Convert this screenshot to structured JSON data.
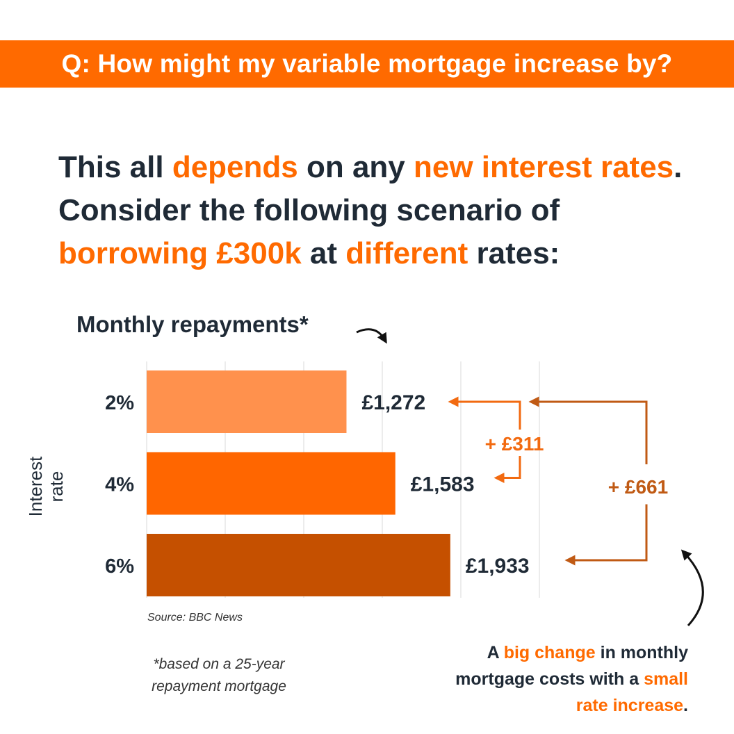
{
  "banner": {
    "title": "Q: How might my variable mortgage increase by?"
  },
  "headline": {
    "parts": [
      {
        "text": "This all ",
        "highlight": false
      },
      {
        "text": "depends",
        "highlight": true
      },
      {
        "text": " on any ",
        "highlight": false
      },
      {
        "text": "new interest rates",
        "highlight": true
      },
      {
        "text": ". Consider the following scenario of ",
        "highlight": false
      },
      {
        "text": "borrowing £300k",
        "highlight": true
      },
      {
        "text": " at ",
        "highlight": false
      },
      {
        "text": "different",
        "highlight": true
      },
      {
        "text": " rates:",
        "highlight": false
      }
    ]
  },
  "colors": {
    "accent": "#ff6a00",
    "dark_text": "#1f2a36",
    "bar_2pct": "#ff914d",
    "bar_4pct": "#ff6600",
    "bar_6pct": "#c55000",
    "arrow_light": "#f26a10",
    "arrow_dark": "#c05a14"
  },
  "chart_data": {
    "type": "bar",
    "orientation": "horizontal",
    "title": "Monthly repayments*",
    "ylabel": "Interest rate",
    "categories": [
      "2%",
      "4%",
      "6%"
    ],
    "values": [
      1272,
      1583,
      1933
    ],
    "value_labels": [
      "£1,272",
      "£1,583",
      "£1,933"
    ],
    "xlim": [
      0,
      2500
    ],
    "grid": true,
    "annotations": [
      {
        "label": "+ £311",
        "from": "2%",
        "to": "4%"
      },
      {
        "label": "+ £661",
        "from": "2%",
        "to": "6%"
      }
    ]
  },
  "source": "Source: BBC News",
  "footnote": "*based on a 25-year repayment mortgage",
  "callout": {
    "parts": [
      {
        "text": "A ",
        "highlight": false
      },
      {
        "text": "big change",
        "highlight": true
      },
      {
        "text": " in monthly mortgage costs with a ",
        "highlight": false
      },
      {
        "text": "small rate increase",
        "highlight": true
      },
      {
        "text": ".",
        "highlight": false
      }
    ]
  }
}
